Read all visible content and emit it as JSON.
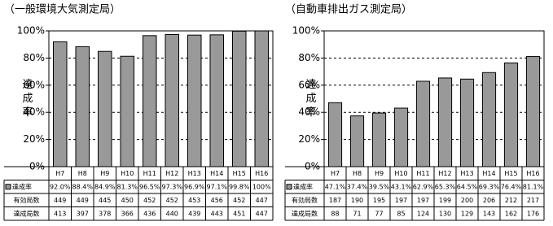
{
  "chart_data": [
    {
      "type": "bar",
      "title": "（一般環境大気測定局）",
      "ylabel": "達成率",
      "categories": [
        "H7",
        "H8",
        "H9",
        "H10",
        "H11",
        "H12",
        "H13",
        "H14",
        "H15",
        "H16"
      ],
      "series": [
        {
          "name": "達成率",
          "color": "#999999",
          "values": [
            92.0,
            88.4,
            84.9,
            81.3,
            96.5,
            97.3,
            96.9,
            97.1,
            99.8,
            100
          ],
          "value_labels": [
            "92.0%",
            "88.4%",
            "84.9%",
            "81.3%",
            "96.5%",
            "97.3%",
            "96.9%",
            "97.1%",
            "99.8%",
            "100%"
          ]
        }
      ],
      "table": [
        {
          "name": "有効局数",
          "values": [
            449,
            449,
            445,
            450,
            452,
            452,
            453,
            456,
            452,
            447
          ]
        },
        {
          "name": "達成局数",
          "values": [
            413,
            397,
            378,
            366,
            436,
            440,
            439,
            443,
            451,
            447
          ]
        }
      ],
      "ylim": [
        0,
        100
      ],
      "yticks": [
        {
          "value": 0,
          "label": "0%"
        },
        {
          "value": 20,
          "label": "20%"
        },
        {
          "value": 40,
          "label": "40%"
        },
        {
          "value": 60,
          "label": "60%"
        },
        {
          "value": 80,
          "label": "80%"
        },
        {
          "value": 100,
          "label": "100%"
        }
      ],
      "grid": true
    },
    {
      "type": "bar",
      "title": "（自動車排出ガス測定局）",
      "ylabel": "達成率",
      "categories": [
        "H7",
        "H8",
        "H9",
        "H10",
        "H11",
        "H12",
        "H13",
        "H14",
        "H15",
        "H16"
      ],
      "series": [
        {
          "name": "達成率",
          "color": "#999999",
          "values": [
            47.1,
            37.4,
            39.5,
            43.1,
            62.9,
            65.3,
            64.5,
            69.3,
            76.4,
            81.1
          ],
          "value_labels": [
            "47.1%",
            "37.4%",
            "39.5%",
            "43.1%",
            "62.9%",
            "65.3%",
            "64.5%",
            "69.3%",
            "76.4%",
            "81.1%"
          ]
        }
      ],
      "table": [
        {
          "name": "有効局数",
          "values": [
            187,
            190,
            195,
            197,
            197,
            199,
            200,
            206,
            212,
            217
          ]
        },
        {
          "name": "達成局数",
          "values": [
            88,
            71,
            77,
            85,
            124,
            130,
            129,
            143,
            162,
            176
          ]
        }
      ],
      "ylim": [
        0,
        100
      ],
      "yticks": [
        {
          "value": 0,
          "label": "0%"
        },
        {
          "value": 20,
          "label": "20%"
        },
        {
          "value": 40,
          "label": "40%"
        },
        {
          "value": 60,
          "label": "60%"
        },
        {
          "value": 80,
          "label": "80%"
        },
        {
          "value": 100,
          "label": "100%"
        }
      ],
      "grid": true
    }
  ]
}
